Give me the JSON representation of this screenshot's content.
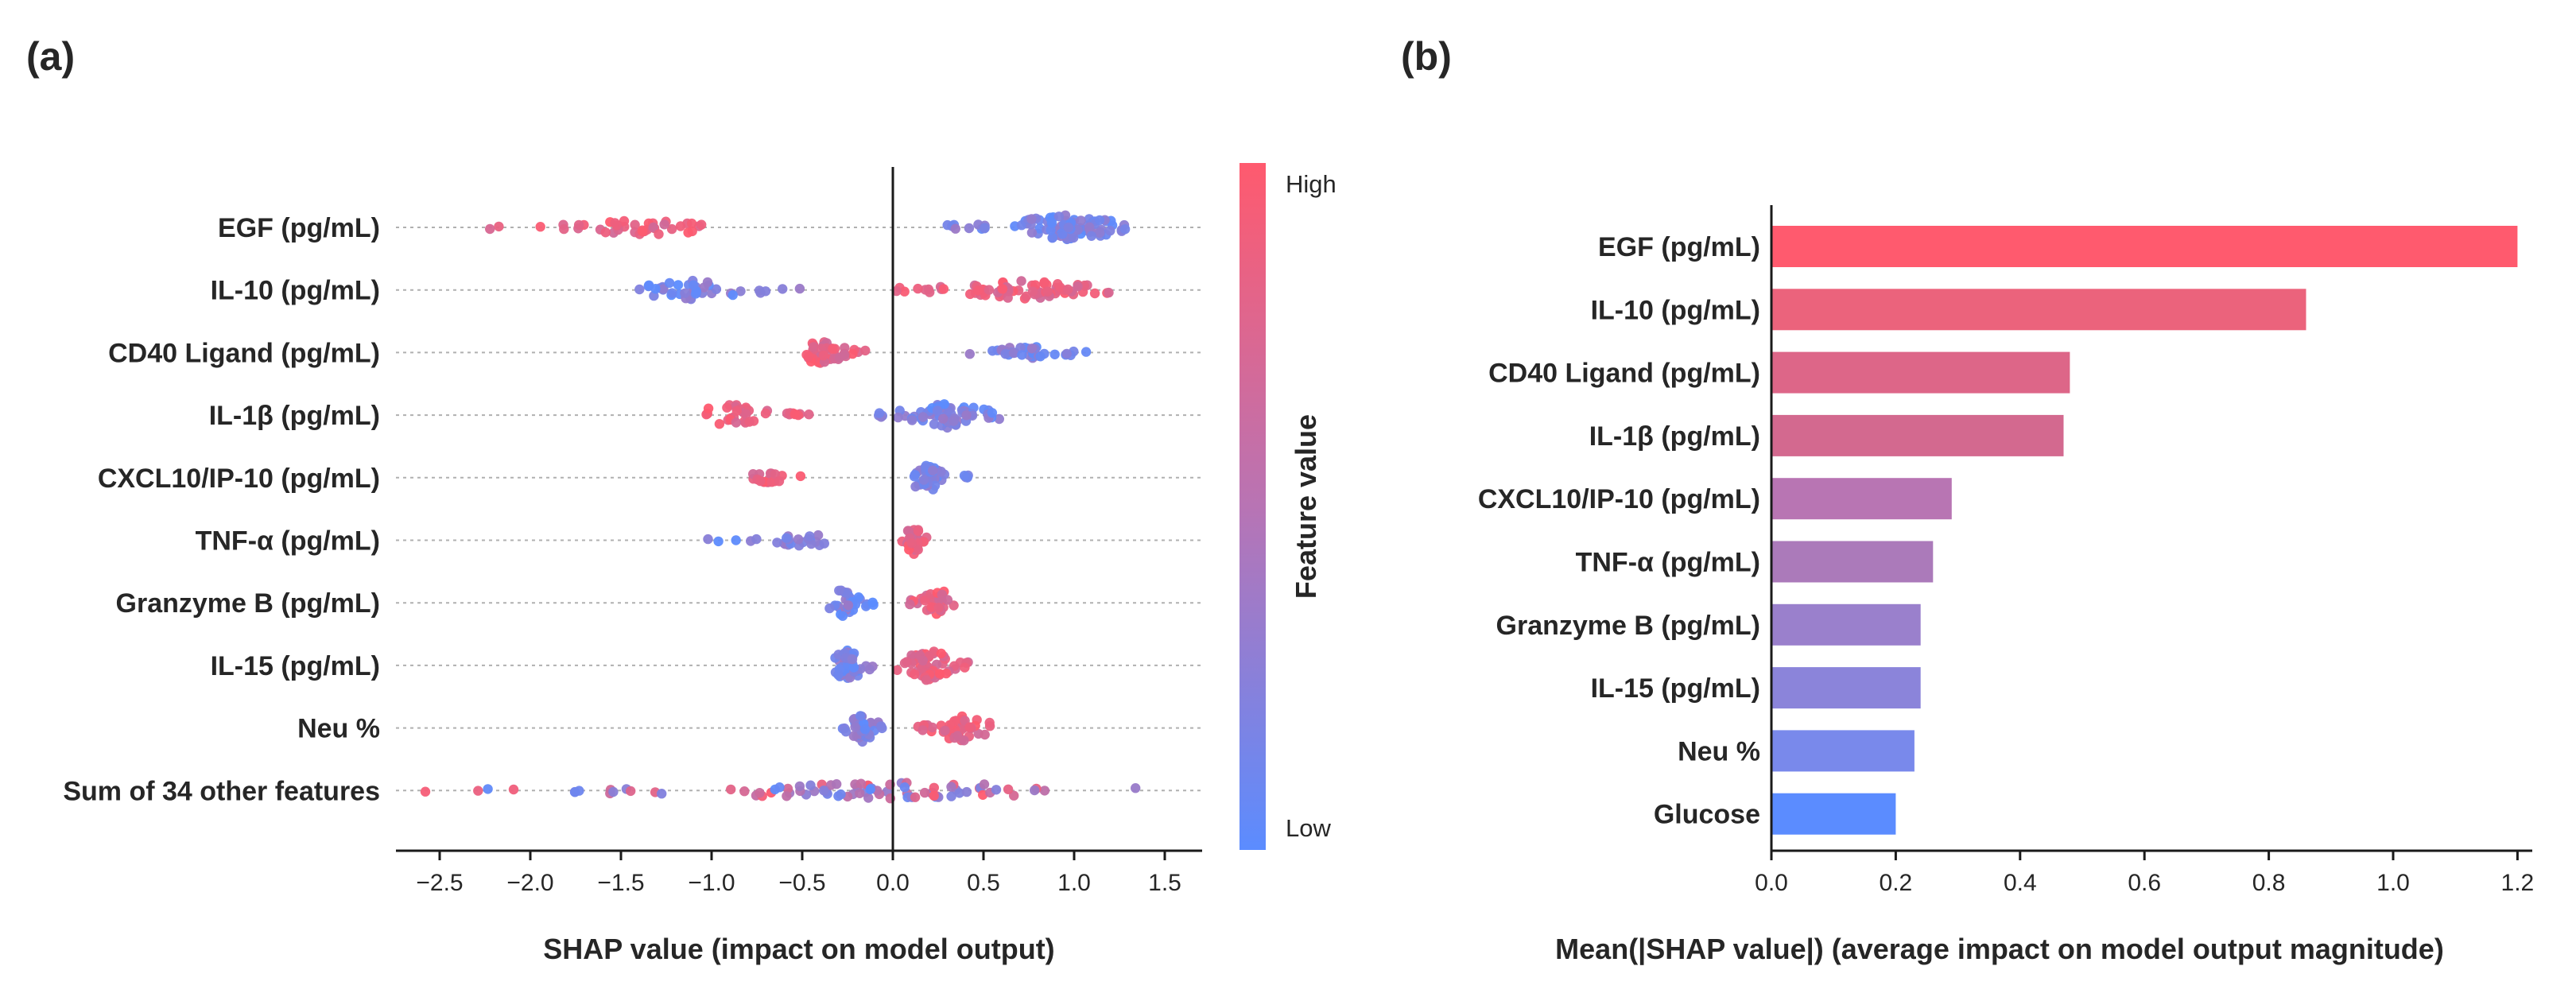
{
  "chart_data": [
    {
      "panel": "(a)",
      "type": "scatter",
      "subtype": "shap-beeswarm",
      "xlabel": "SHAP value (impact on model output)",
      "xlim": [
        -2.75,
        1.72
      ],
      "xticks": [
        -2.5,
        -2.0,
        -1.5,
        -1.0,
        -0.5,
        0.0,
        0.5,
        1.0,
        1.5
      ],
      "xtick_labels": [
        "−2.5",
        "−2.0",
        "−1.5",
        "−1.0",
        "−0.5",
        "0.0",
        "0.5",
        "1.0",
        "1.5"
      ],
      "colorbar": {
        "title": "Feature value",
        "high_label": "High",
        "low_label": "Low",
        "high_color": "#ff5a6e",
        "low_color": "#5b8cff"
      },
      "features": [
        {
          "name": "EGF (pg/mL)",
          "clusters": [
            {
              "x": [
                -2.25,
                -0.95
              ],
              "center": -1.4,
              "n": 40,
              "color": "high",
              "spread": 10
            },
            {
              "x": [
                0.3,
                1.3
              ],
              "center": 0.95,
              "n": 95,
              "color": "low",
              "spread": 16
            }
          ]
        },
        {
          "name": "IL-10 (pg/mL)",
          "clusters": [
            {
              "x": [
                -1.45,
                -0.45
              ],
              "center": -1.1,
              "n": 42,
              "color": "low",
              "spread": 12
            },
            {
              "x": [
                0.02,
                1.22
              ],
              "center": 0.75,
              "n": 75,
              "color": "high",
              "spread": 12
            }
          ]
        },
        {
          "name": "CD40 Ligand (pg/mL)",
          "clusters": [
            {
              "x": [
                -0.5,
                -0.15
              ],
              "center": -0.4,
              "n": 45,
              "color": "high",
              "spread": 16
            },
            {
              "x": [
                0.32,
                1.08
              ],
              "center": 0.75,
              "n": 32,
              "color": "low",
              "spread": 8
            }
          ]
        },
        {
          "name": "IL-1β (pg/mL)",
          "clusters": [
            {
              "x": [
                -1.1,
                -0.45
              ],
              "center": -0.9,
              "n": 35,
              "color": "high",
              "spread": 14
            },
            {
              "x": [
                -0.08,
                0.6
              ],
              "center": 0.3,
              "n": 70,
              "color": "low",
              "spread": 16
            }
          ]
        },
        {
          "name": "CXCL10/IP-10 (pg/mL)",
          "clusters": [
            {
              "x": [
                -0.8,
                -0.5
              ],
              "center": -0.7,
              "n": 18,
              "color": "high",
              "spread": 8
            },
            {
              "x": [
                0.1,
                0.42
              ],
              "center": 0.2,
              "n": 45,
              "color": "low",
              "spread": 18
            }
          ]
        },
        {
          "name": "TNF-α (pg/mL)",
          "clusters": [
            {
              "x": [
                -1.1,
                -0.35
              ],
              "center": -0.5,
              "n": 25,
              "color": "low",
              "spread": 8
            },
            {
              "x": [
                0.02,
                0.22
              ],
              "center": 0.12,
              "n": 35,
              "color": "high",
              "spread": 18
            }
          ]
        },
        {
          "name": "Granzyme B (pg/mL)",
          "clusters": [
            {
              "x": [
                -0.35,
                -0.1
              ],
              "center": -0.28,
              "n": 30,
              "color": "low",
              "spread": 18
            },
            {
              "x": [
                0.08,
                0.35
              ],
              "center": 0.25,
              "n": 30,
              "color": "high",
              "spread": 18
            }
          ]
        },
        {
          "name": "IL-15 (pg/mL)",
          "clusters": [
            {
              "x": [
                -0.38,
                -0.1
              ],
              "center": -0.25,
              "n": 40,
              "color": "low",
              "spread": 20
            },
            {
              "x": [
                0.02,
                0.45
              ],
              "center": 0.2,
              "n": 55,
              "color": "high",
              "spread": 20
            }
          ]
        },
        {
          "name": "Neu %",
          "clusters": [
            {
              "x": [
                -0.3,
                -0.05
              ],
              "center": -0.17,
              "n": 45,
              "color": "low",
              "spread": 18
            },
            {
              "x": [
                0.12,
                0.55
              ],
              "center": 0.37,
              "n": 45,
              "color": "high",
              "spread": 18
            }
          ]
        },
        {
          "name": "Sum of 34 other features",
          "clusters": [
            {
              "x": [
                -2.6,
                1.55
              ],
              "center": 0.0,
              "n": 90,
              "color": "mixed",
              "spread": 10
            }
          ]
        }
      ]
    },
    {
      "panel": "(b)",
      "type": "bar",
      "orientation": "horizontal",
      "xlabel": "Mean(|SHAP value|) (average impact on model output magnitude)",
      "xlim": [
        0,
        1.25
      ],
      "xticks": [
        0.0,
        0.2,
        0.4,
        0.6,
        0.8,
        1.0,
        1.2
      ],
      "xtick_labels": [
        "0.0",
        "0.2",
        "0.4",
        "0.6",
        "0.8",
        "1.0",
        "1.2"
      ],
      "categories": [
        "EGF (pg/mL)",
        "IL-10 (pg/mL)",
        "CD40 Ligand (pg/mL)",
        "IL-1β (pg/mL)",
        "CXCL10/IP-10 (pg/mL)",
        "TNF-α (pg/mL)",
        "Granzyme B (pg/mL)",
        "IL-15 (pg/mL)",
        "Neu %",
        "Glucose"
      ],
      "values": [
        1.2,
        0.86,
        0.48,
        0.47,
        0.29,
        0.26,
        0.24,
        0.24,
        0.23,
        0.2
      ],
      "colors": [
        "#ff5a6e",
        "#eb637c",
        "#dd6688",
        "#d3698f",
        "#b875b3",
        "#ab7aba",
        "#9a80cc",
        "#8b84da",
        "#7989eb",
        "#5b8cff"
      ]
    }
  ],
  "panel_labels": [
    "(a)",
    "(b)"
  ]
}
